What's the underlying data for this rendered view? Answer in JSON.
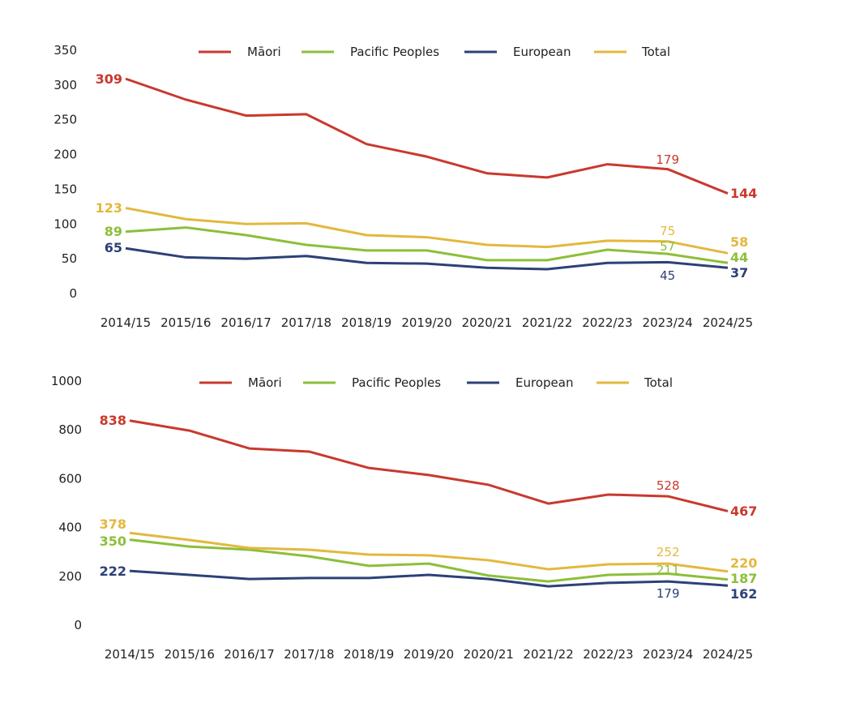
{
  "chart_data": [
    {
      "type": "line",
      "categories": [
        "2014/15",
        "2015/16",
        "2016/17",
        "2017/18",
        "2018/19",
        "2019/20",
        "2020/21",
        "2021/22",
        "2022/23",
        "2023/24",
        "2024/25"
      ],
      "ylim": [
        0,
        350
      ],
      "yticks": [
        0,
        50,
        100,
        150,
        200,
        250,
        300,
        350
      ],
      "grid": false,
      "legend": "top-center",
      "series": [
        {
          "name": "Māori",
          "color": "#c9392e",
          "values": [
            309,
            279,
            256,
            258,
            215,
            197,
            173,
            167,
            186,
            179,
            144
          ]
        },
        {
          "name": "Pacific Peoples",
          "color": "#8cbf3a",
          "values": [
            89,
            95,
            84,
            70,
            62,
            62,
            48,
            48,
            63,
            57,
            44
          ]
        },
        {
          "name": "European",
          "color": "#2d4178",
          "values": [
            65,
            52,
            50,
            54,
            44,
            43,
            37,
            35,
            44,
            45,
            37
          ]
        },
        {
          "name": "Total",
          "color": "#e3b83e",
          "values": [
            123,
            107,
            100,
            101,
            84,
            81,
            70,
            67,
            76,
            75,
            58
          ]
        }
      ],
      "labelled_points": [
        "2014/15",
        "2023/24",
        "2024/25"
      ]
    },
    {
      "type": "line",
      "categories": [
        "2014/15",
        "2015/16",
        "2016/17",
        "2017/18",
        "2018/19",
        "2019/20",
        "2020/21",
        "2021/22",
        "2022/23",
        "2023/24",
        "2024/25"
      ],
      "ylim": [
        0,
        1000
      ],
      "yticks": [
        0,
        200,
        400,
        600,
        800,
        1000
      ],
      "grid": false,
      "legend": "top-center",
      "series": [
        {
          "name": "Māori",
          "color": "#c9392e",
          "values": [
            838,
            797,
            724,
            711,
            644,
            615,
            575,
            498,
            535,
            528,
            467
          ]
        },
        {
          "name": "Pacific Peoples",
          "color": "#8cbf3a",
          "values": [
            350,
            322,
            309,
            282,
            243,
            252,
            203,
            179,
            206,
            211,
            187
          ]
        },
        {
          "name": "European",
          "color": "#2d4178",
          "values": [
            222,
            206,
            189,
            193,
            193,
            206,
            189,
            159,
            173,
            179,
            162
          ]
        },
        {
          "name": "Total",
          "color": "#e3b83e",
          "values": [
            378,
            349,
            316,
            309,
            289,
            286,
            266,
            229,
            249,
            252,
            220
          ]
        }
      ],
      "labelled_points": [
        "2014/15",
        "2023/24",
        "2024/25"
      ]
    }
  ]
}
